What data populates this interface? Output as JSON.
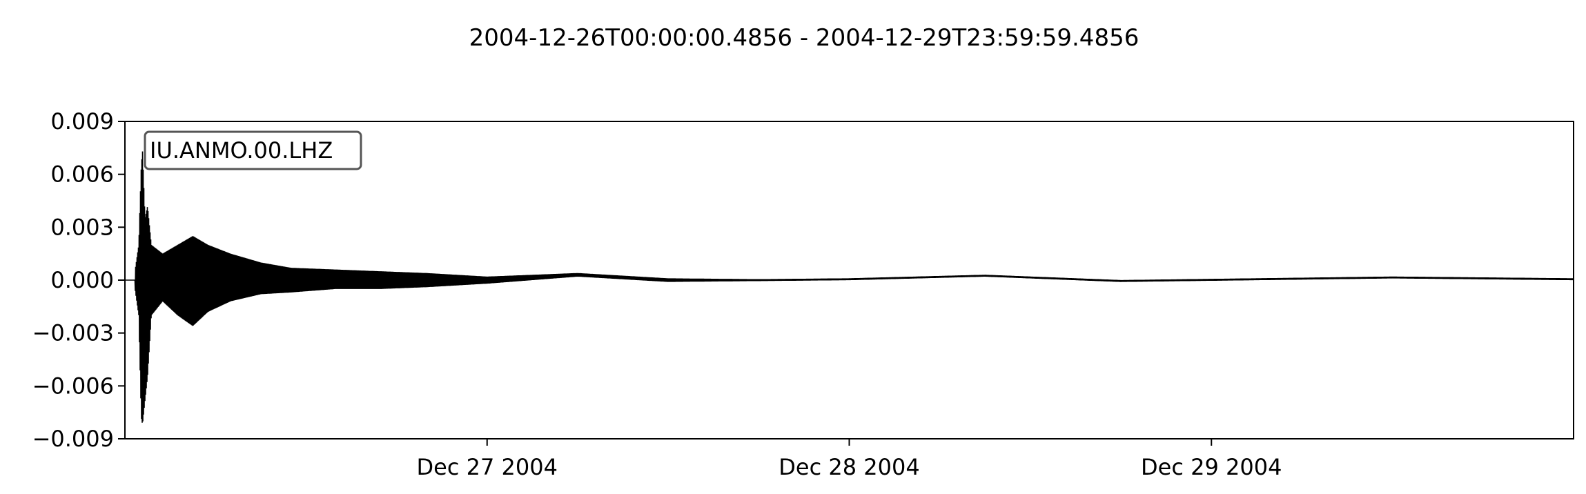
{
  "chart_data": {
    "type": "line",
    "title": "2004-12-26T00:00:00.4856  -  2004-12-29T23:59:59.4856",
    "trace_label": "IU.ANMO.00.LHZ",
    "xlabel": "",
    "ylabel": "",
    "x_axis": {
      "type": "date",
      "range": [
        "2004-12-26T00:00:00.4856",
        "2004-12-29T23:59:59.4856"
      ],
      "ticks": [
        {
          "at": "2004-12-27T00:00:00",
          "label": "Dec 27 2004"
        },
        {
          "at": "2004-12-28T00:00:00",
          "label": "Dec 28 2004"
        },
        {
          "at": "2004-12-29T00:00:00",
          "label": "Dec 29 2004"
        }
      ]
    },
    "y_axis": {
      "range": [
        -0.009,
        0.009
      ],
      "ticks": [
        {
          "value": 0.009,
          "label": "0.009"
        },
        {
          "value": 0.006,
          "label": "0.006"
        },
        {
          "value": 0.003,
          "label": "0.003"
        },
        {
          "value": 0.0,
          "label": "0.000"
        },
        {
          "value": -0.003,
          "label": "−0.003"
        },
        {
          "value": -0.006,
          "label": "−0.006"
        },
        {
          "value": -0.009,
          "label": "−0.009"
        }
      ]
    },
    "grid": false,
    "series": [
      {
        "color": "#000000",
        "envelope": [
          {
            "t": "2004-12-26T00:40:00",
            "max": 0.0005,
            "min": -0.0005
          },
          {
            "t": "2004-12-26T00:55:00",
            "max": 0.002,
            "min": -0.002
          },
          {
            "t": "2004-12-26T01:05:00",
            "max": 0.0065,
            "min": -0.0078
          },
          {
            "t": "2004-12-26T01:10:00",
            "max": 0.0073,
            "min": -0.0082
          },
          {
            "t": "2004-12-26T01:20:00",
            "max": 0.0035,
            "min": -0.0068
          },
          {
            "t": "2004-12-26T01:30:00",
            "max": 0.0042,
            "min": -0.0055
          },
          {
            "t": "2004-12-26T01:45:00",
            "max": 0.002,
            "min": -0.002
          },
          {
            "t": "2004-12-26T02:30:00",
            "max": 0.0015,
            "min": -0.0012
          },
          {
            "t": "2004-12-26T03:30:00",
            "max": 0.002,
            "min": -0.002
          },
          {
            "t": "2004-12-26T04:30:00",
            "max": 0.0025,
            "min": -0.0026
          },
          {
            "t": "2004-12-26T05:30:00",
            "max": 0.002,
            "min": -0.0018
          },
          {
            "t": "2004-12-26T07:00:00",
            "max": 0.0015,
            "min": -0.0012
          },
          {
            "t": "2004-12-26T09:00:00",
            "max": 0.001,
            "min": -0.0008
          },
          {
            "t": "2004-12-26T11:00:00",
            "max": 0.0007,
            "min": -0.0007
          },
          {
            "t": "2004-12-26T14:00:00",
            "max": 0.0006,
            "min": -0.0005
          },
          {
            "t": "2004-12-26T17:00:00",
            "max": 0.0005,
            "min": -0.0005
          },
          {
            "t": "2004-12-26T20:00:00",
            "max": 0.0004,
            "min": -0.0004
          },
          {
            "t": "2004-12-27T00:00:00",
            "max": 0.0002,
            "min": -0.0002
          },
          {
            "t": "2004-12-27T06:00:00",
            "max": 0.0004,
            "min": 0.0002
          },
          {
            "t": "2004-12-27T12:00:00",
            "max": 0.0001,
            "min": -0.0001
          },
          {
            "t": "2004-12-27T18:00:00",
            "max": 5e-05,
            "min": -5e-05
          },
          {
            "t": "2004-12-28T00:00:00",
            "max": 0.0001,
            "min": 0.0
          },
          {
            "t": "2004-12-28T09:00:00",
            "max": 0.0003,
            "min": 0.0002
          },
          {
            "t": "2004-12-28T18:00:00",
            "max": 0.0,
            "min": -0.0001
          },
          {
            "t": "2004-12-29T03:00:00",
            "max": 0.0001,
            "min": 0.0
          },
          {
            "t": "2004-12-29T12:00:00",
            "max": 0.0002,
            "min": 0.0001
          },
          {
            "t": "2004-12-29T23:59:59",
            "max": 0.0001,
            "min": 0.0
          }
        ]
      }
    ]
  }
}
